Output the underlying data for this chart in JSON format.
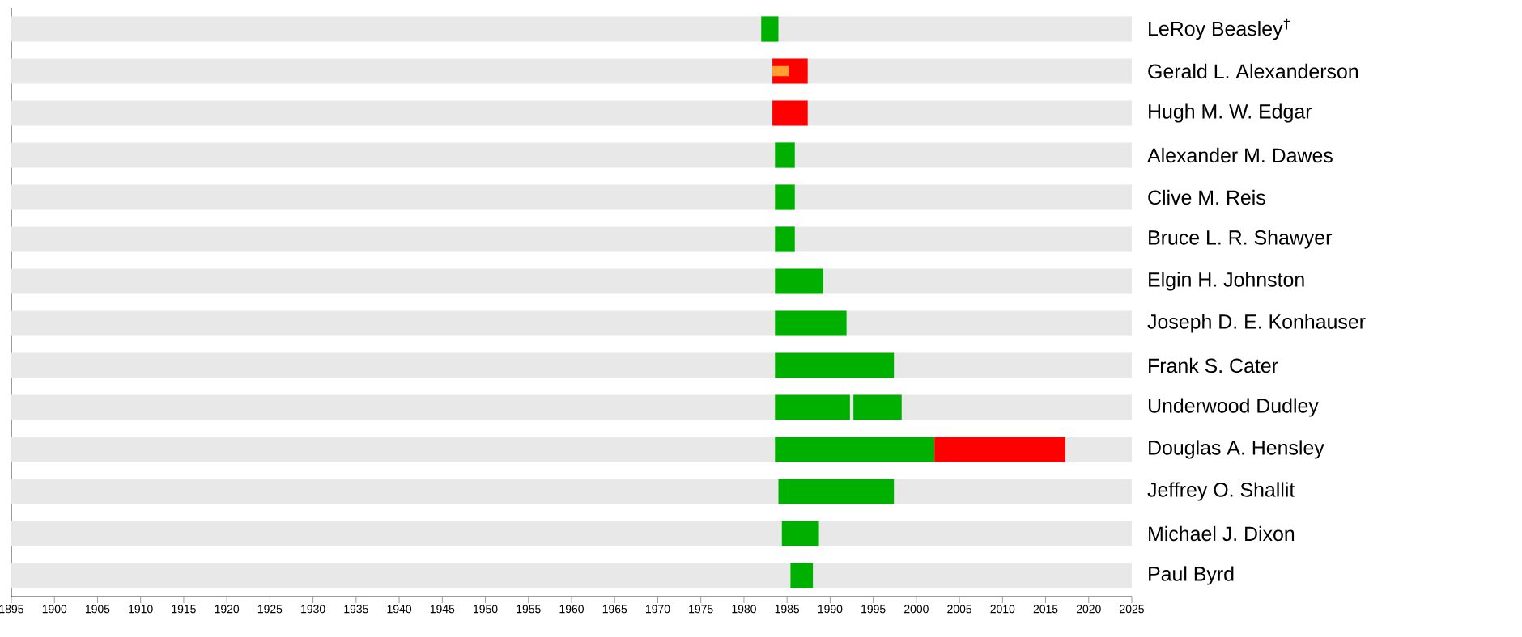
{
  "chart_data": {
    "type": "bar",
    "orientation": "horizontal",
    "categories": [
      "LeRoy Beasley$^{†}$",
      "Gerald L. Alexanderson",
      "Hugh M. W. Edgar",
      "Alexander M. Dawes",
      "Clive M. Reis",
      "Bruce L. R. Shawyer",
      "Elgin H. Johnston",
      "Joseph D. E. Konhauser",
      "Frank S. Cater",
      "Underwood Dudley",
      "Douglas A. Hensley",
      "Jeffrey O. Shallit",
      "Michael J. Dixon",
      "Paul Byrd"
    ],
    "series": [
      {
        "color": "#e8e8e8",
        "base": [
          1895,
          1895,
          1895,
          1895,
          1895,
          1895,
          1895,
          1895,
          1895,
          1895,
          1895,
          1895,
          1895,
          1895
        ],
        "values": [
          130,
          130,
          130,
          130,
          130,
          130,
          130,
          130,
          130,
          130,
          130,
          130,
          130,
          130
        ]
      },
      {
        "color": "#00b000",
        "base": [
          1982,
          null,
          null,
          1983.6,
          1983.6,
          1983.6,
          1983.6,
          1983.6,
          1983.6,
          1983.6,
          1983.6,
          1984,
          1984.4,
          1985.4
        ],
        "values": [
          2,
          null,
          null,
          2.3,
          2.3,
          2.3,
          5.6,
          8.3,
          13.8,
          8.7,
          18.5,
          13.4,
          4.3,
          2.6
        ]
      },
      {
        "color": "#00b000",
        "base": [
          null,
          null,
          null,
          null,
          null,
          null,
          null,
          null,
          null,
          1992.7,
          null,
          null,
          null,
          null
        ],
        "values": [
          null,
          null,
          null,
          null,
          null,
          null,
          null,
          null,
          null,
          5.6,
          null,
          null,
          null,
          null
        ]
      },
      {
        "color": "#ff0000",
        "base": [
          null,
          1983.3,
          1983.3,
          null,
          null,
          null,
          null,
          null,
          null,
          null,
          2002.1,
          null,
          null,
          null
        ],
        "values": [
          null,
          4.1,
          4.1,
          null,
          null,
          null,
          null,
          null,
          null,
          null,
          15.2,
          null,
          null,
          null
        ]
      },
      {
        "color": "#ffa030",
        "base": [
          null,
          1983.3,
          null,
          null,
          null,
          null,
          null,
          null,
          null,
          null,
          null,
          null,
          null,
          null
        ],
        "values": [
          null,
          1.9,
          null,
          null,
          null,
          null,
          null,
          null,
          null,
          null,
          null,
          null,
          null,
          null
        ]
      }
    ],
    "xlim": [
      1895,
      2025
    ],
    "xticks": [
      1895,
      1900,
      1905,
      1910,
      1915,
      1920,
      1925,
      1930,
      1935,
      1940,
      1945,
      1950,
      1955,
      1960,
      1965,
      1970,
      1975,
      1980,
      1985,
      1990,
      1995,
      2000,
      2005,
      2010,
      2015,
      2020,
      2025
    ]
  }
}
